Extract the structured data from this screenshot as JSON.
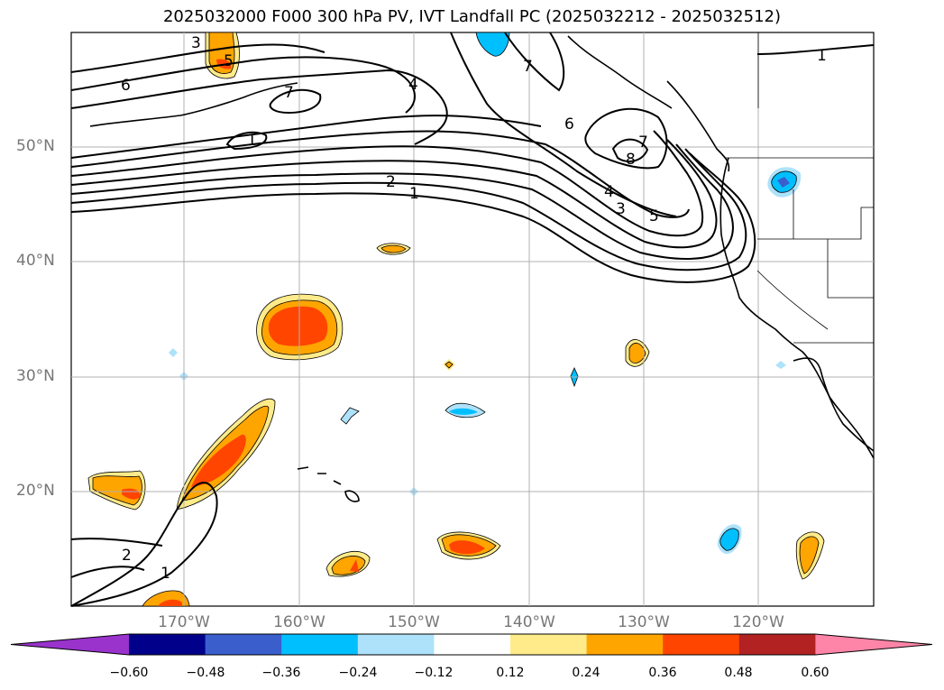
{
  "title": "2025032000 F000 300 hPa PV, IVT Landfall PC (2025032212 - 2025032512)",
  "latitude_labels": [
    "50°N",
    "40°N",
    "30°N",
    "20°N"
  ],
  "longitude_labels": [
    "170°W",
    "160°W",
    "150°W",
    "140°W",
    "130°W",
    "120°W"
  ],
  "contour_labels": [
    "3",
    "5",
    "6",
    "4",
    "7",
    "7",
    "6",
    "7",
    "8",
    "1",
    "2",
    "1",
    "4",
    "3",
    "5",
    "1",
    "2",
    "1"
  ],
  "colorbar": {
    "colors": [
      "#9933cc",
      "#00008b",
      "#3a5fcd",
      "#00bfff",
      "#aee2fa",
      "#ffffff",
      "#ffeb8a",
      "#ffa500",
      "#ff4500",
      "#b22222",
      "#ff85a8"
    ],
    "tick_labels": [
      "−0.60",
      "−0.48",
      "−0.36",
      "−0.24",
      "−0.12",
      "0.12",
      "0.24",
      "0.36",
      "0.48",
      "0.60"
    ]
  },
  "colors": {
    "coast": "#000000",
    "grid": "#b0b0b0",
    "contour": "#000000"
  }
}
